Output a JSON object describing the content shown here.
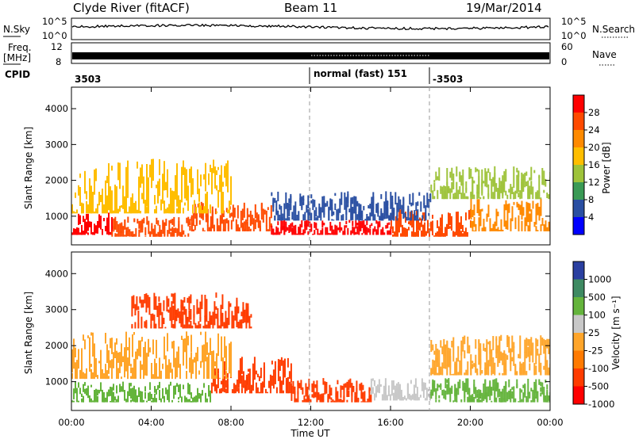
{
  "header": {
    "station": "Clyde River (fitACF)",
    "beam": "Beam 11",
    "date": "19/Mar/2014"
  },
  "panels": {
    "nsky_label": "N.Sky",
    "nsky_ticks": [
      "10^5",
      "10^0"
    ],
    "nsearch_label": "N.Search",
    "nsearch_ticks": [
      "10^5",
      "10^0"
    ],
    "freq_label": "Freq.",
    "freq_unit": "[MHz]",
    "freq_ticks": [
      "12",
      "8"
    ],
    "nave_label": "Nave",
    "nave_ticks": [
      "60",
      "0"
    ],
    "cpid_label": "CPID",
    "cpid_segments": [
      "3503",
      "normal (fast) 151",
      "-3503"
    ]
  },
  "colorbars": {
    "power": {
      "label": "Power [dB]",
      "ticks": [
        "28",
        "24",
        "20",
        "16",
        "12",
        "8",
        "4"
      ],
      "colors": [
        "#ff0000",
        "#ff4a00",
        "#ff8a00",
        "#ffbe00",
        "#9ec33a",
        "#3a9a55",
        "#2a4fa2",
        "#0000ff"
      ]
    },
    "velocity": {
      "label": "Velocity [m s⁻¹]",
      "ticks": [
        "1000",
        "500",
        "100",
        "25",
        "-25",
        "-100",
        "-500",
        "-1000"
      ],
      "colors": [
        "#2a3fa0",
        "#3e8a62",
        "#64b43c",
        "#c8c8c8",
        "#ffa52a",
        "#ff7a00",
        "#ff3c00",
        "#ff0000"
      ]
    }
  },
  "chart_data": [
    {
      "type": "heatmap",
      "name": "power",
      "xlabel": "Time UT",
      "ylabel": "Slant Range [km]",
      "xticks": [
        "00:00",
        "04:00",
        "08:00",
        "12:00",
        "16:00",
        "20:00",
        "00:00"
      ],
      "yticks": [
        1000,
        2000,
        3000,
        4000
      ],
      "xlim_hours": [
        0,
        24
      ],
      "ylim_km": [
        200,
        4600
      ],
      "colorbar": "power",
      "regions": [
        {
          "t_start": 0.0,
          "t_end": 2.0,
          "r_low": 500,
          "r_high": 1100,
          "value": 28
        },
        {
          "t_start": 2.0,
          "t_end": 6.0,
          "r_low": 450,
          "r_high": 1000,
          "value": 26
        },
        {
          "t_start": 6.0,
          "t_end": 10.0,
          "r_low": 600,
          "r_high": 1400,
          "value": 24
        },
        {
          "t_start": 10.0,
          "t_end": 16.0,
          "r_low": 500,
          "r_high": 900,
          "value": 28
        },
        {
          "t_start": 16.0,
          "t_end": 20.0,
          "r_low": 450,
          "r_high": 1200,
          "value": 26
        },
        {
          "t_start": 20.0,
          "t_end": 24.0,
          "r_low": 600,
          "r_high": 1500,
          "value": 22
        },
        {
          "t_start": 0.0,
          "t_end": 8.0,
          "r_low": 1100,
          "r_high": 2600,
          "value": 18
        },
        {
          "t_start": 10.0,
          "t_end": 18.0,
          "r_low": 900,
          "r_high": 1700,
          "value": 6
        },
        {
          "t_start": 18.0,
          "t_end": 24.0,
          "r_low": 1500,
          "r_high": 2400,
          "value": 14
        }
      ]
    },
    {
      "type": "heatmap",
      "name": "velocity",
      "xlabel": "Time UT",
      "ylabel": "Slant Range [km]",
      "xticks": [
        "00:00",
        "04:00",
        "08:00",
        "12:00",
        "16:00",
        "20:00",
        "00:00"
      ],
      "yticks": [
        1000,
        2000,
        3000,
        4000
      ],
      "xlim_hours": [
        0,
        24
      ],
      "ylim_km": [
        200,
        4600
      ],
      "colorbar": "velocity",
      "regions": [
        {
          "t_start": 0.0,
          "t_end": 7.0,
          "r_low": 450,
          "r_high": 1000,
          "value": 400
        },
        {
          "t_start": 7.0,
          "t_end": 11.0,
          "r_low": 700,
          "r_high": 1700,
          "value": -300
        },
        {
          "t_start": 11.0,
          "t_end": 15.0,
          "r_low": 450,
          "r_high": 1100,
          "value": -300
        },
        {
          "t_start": 15.0,
          "t_end": 18.0,
          "r_low": 500,
          "r_high": 1100,
          "value": 60
        },
        {
          "t_start": 18.0,
          "t_end": 24.0,
          "r_low": 450,
          "r_high": 1100,
          "value": 400
        },
        {
          "t_start": 0.0,
          "t_end": 8.0,
          "r_low": 1100,
          "r_high": 2400,
          "value": 20
        },
        {
          "t_start": 3.0,
          "t_end": 9.0,
          "r_low": 2500,
          "r_high": 3500,
          "value": -150
        },
        {
          "t_start": 18.0,
          "t_end": 24.0,
          "r_low": 1200,
          "r_high": 2300,
          "value": 20
        }
      ]
    }
  ]
}
